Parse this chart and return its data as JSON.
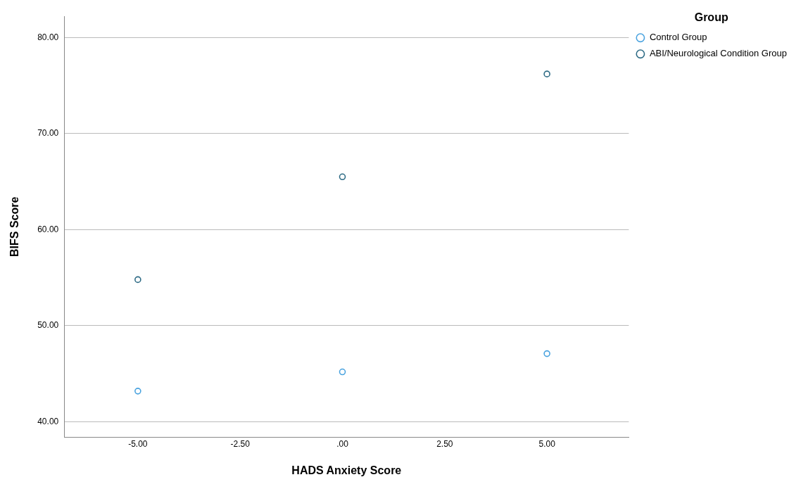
{
  "chart_data": {
    "type": "scatter",
    "xlabel": "HADS Anxiety Score",
    "ylabel": "BIFS Score",
    "legend_title": "Group",
    "xlim": [
      -6.8,
      7.0
    ],
    "xticks": [
      {
        "value": -5,
        "label": "-5.00"
      },
      {
        "value": -2.5,
        "label": "-2.50"
      },
      {
        "value": 0,
        "label": ".00"
      },
      {
        "value": 2.5,
        "label": "2.50"
      },
      {
        "value": 5,
        "label": "5.00"
      }
    ],
    "ylim": [
      38.4,
      82.2
    ],
    "yticks": [
      {
        "value": 40,
        "label": "40.00"
      },
      {
        "value": 50,
        "label": "50.00"
      },
      {
        "value": 60,
        "label": "60.00"
      },
      {
        "value": 70,
        "label": "70.00"
      },
      {
        "value": 80,
        "label": "80.00"
      }
    ],
    "grid": "y",
    "legend": "top right",
    "marker": "circle",
    "series": [
      {
        "name": "Control Group",
        "color": "#4aa3df",
        "x": [
          -5,
          0,
          5
        ],
        "values": [
          43.2,
          45.2,
          47.1
        ]
      },
      {
        "name": "ABI/Neurological Condition Group",
        "color": "#2e6b85",
        "x": [
          -5,
          0,
          5
        ],
        "values": [
          54.8,
          65.5,
          76.2
        ]
      }
    ]
  }
}
